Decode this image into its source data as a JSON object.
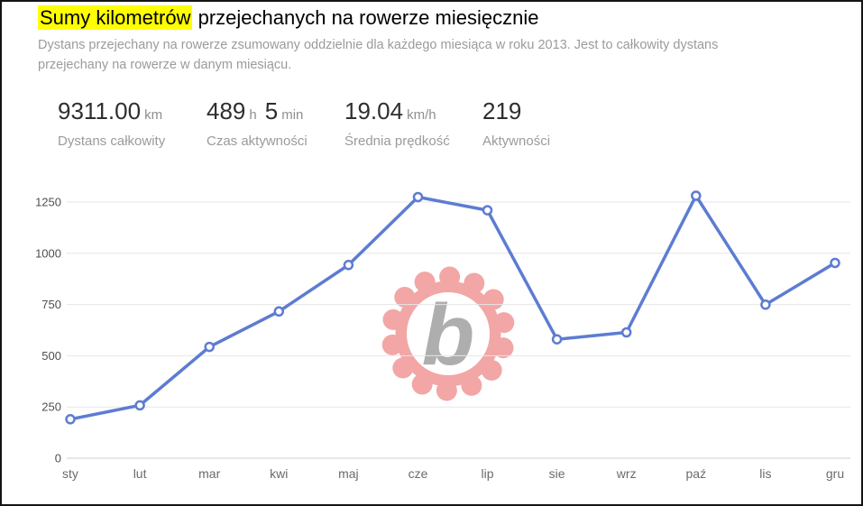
{
  "header": {
    "title_highlight": "Sumy kilometrów",
    "title_rest": " przejechanych na rowerze miesięcznie",
    "highlight_color": "#ffff00",
    "subtitle": "Dystans przejechany na rowerze zsumowany oddzielnie dla każdego miesiąca w roku 2013. Jest to całkowity dystans przejechany na rowerze w danym miesiącu."
  },
  "stats": [
    {
      "parts": [
        {
          "value": "9311.00",
          "unit": "km"
        }
      ],
      "label": "Dystans całkowity"
    },
    {
      "parts": [
        {
          "value": "489",
          "unit": "h"
        },
        {
          "value": "5",
          "unit": "min"
        }
      ],
      "label": "Czas aktywności"
    },
    {
      "parts": [
        {
          "value": "19.04",
          "unit": "km/h"
        }
      ],
      "label": "Średnia prędkość"
    },
    {
      "parts": [
        {
          "value": "219",
          "unit": ""
        }
      ],
      "label": "Aktywności"
    }
  ],
  "watermark": {
    "letter": "b",
    "gear_color": "#f09090",
    "circle_color": "#ffffff",
    "letter_color": "#9a9a9a"
  },
  "chart_data": {
    "type": "line",
    "title": "Sumy kilometrów przejechanych na rowerze miesięcznie",
    "year": "2013",
    "categories": [
      "sty",
      "lut",
      "mar",
      "kwi",
      "maj",
      "cze",
      "lip",
      "sie",
      "wrz",
      "paź",
      "lis",
      "gru"
    ],
    "values": [
      190,
      258,
      543,
      716,
      943,
      1274,
      1210,
      580,
      614,
      1281,
      749,
      953
    ],
    "total": 9311,
    "xlabel": "",
    "ylabel": "",
    "yticks": [
      0,
      250,
      500,
      750,
      1000,
      1250
    ],
    "ylim": [
      0,
      1375
    ],
    "grid": true,
    "legend": "none",
    "line_color": "#5d7cd2",
    "marker_fill": "#ffffff",
    "grid_color": "#e6e6e6",
    "baseline_color": "#cccccc",
    "ytick_color": "#4f4f4f",
    "xtick_color": "#6b6b6b"
  }
}
